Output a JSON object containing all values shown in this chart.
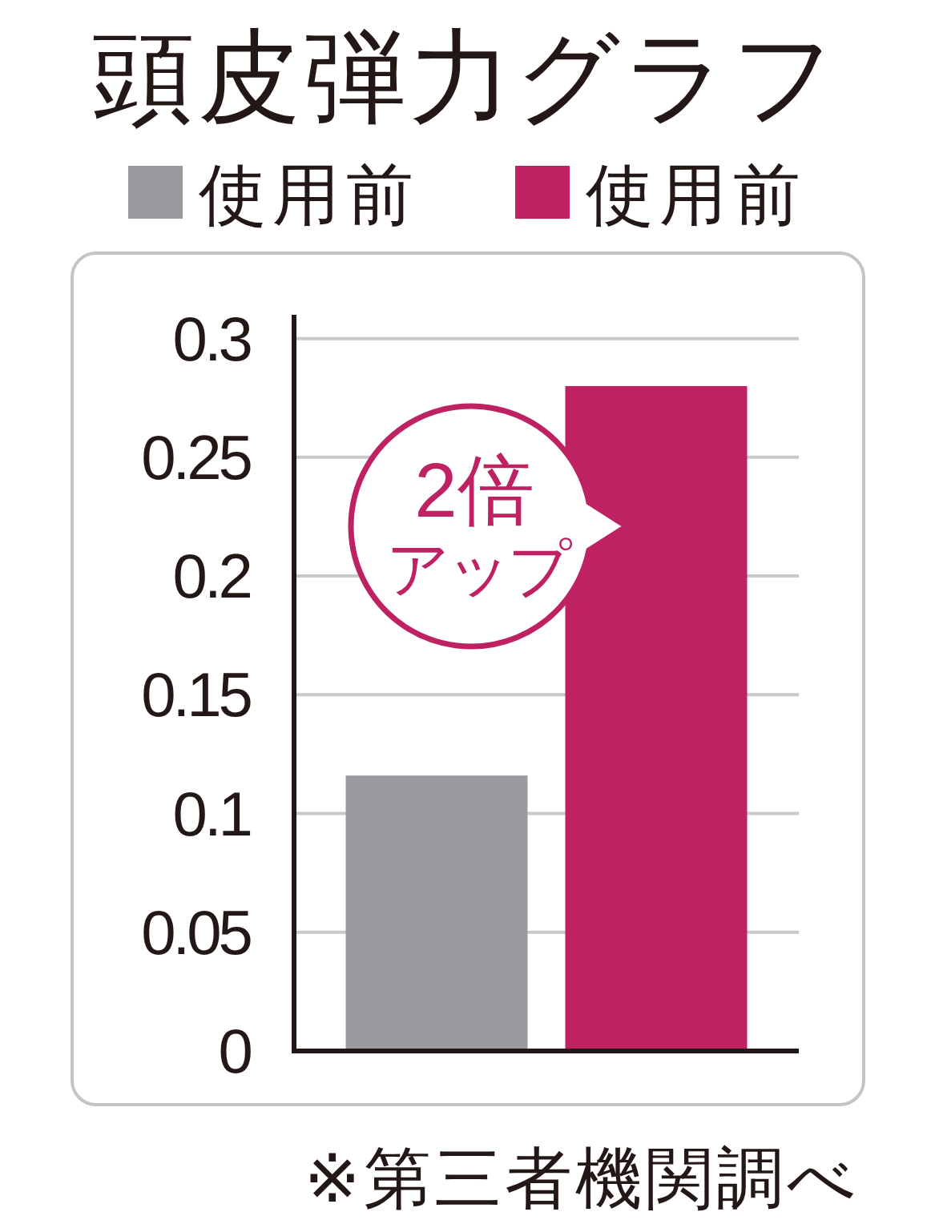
{
  "chart_data": {
    "type": "bar",
    "title": "頭皮弾力グラフ",
    "categories": [
      null
    ],
    "series": [
      {
        "name": "使用前",
        "color": "#9a9b9f",
        "values": [
          0.116
        ]
      },
      {
        "name": "使用前",
        "color": "#bf2263",
        "values": [
          0.28
        ]
      }
    ],
    "ylim": [
      0,
      0.31
    ],
    "yticks": [
      0,
      0.05,
      0.1,
      0.15,
      0.2,
      0.25,
      0.3
    ],
    "grid": "y",
    "legend": "top",
    "annotations": [
      "2倍",
      "アップ",
      "※第三者機関調べ"
    ]
  }
}
